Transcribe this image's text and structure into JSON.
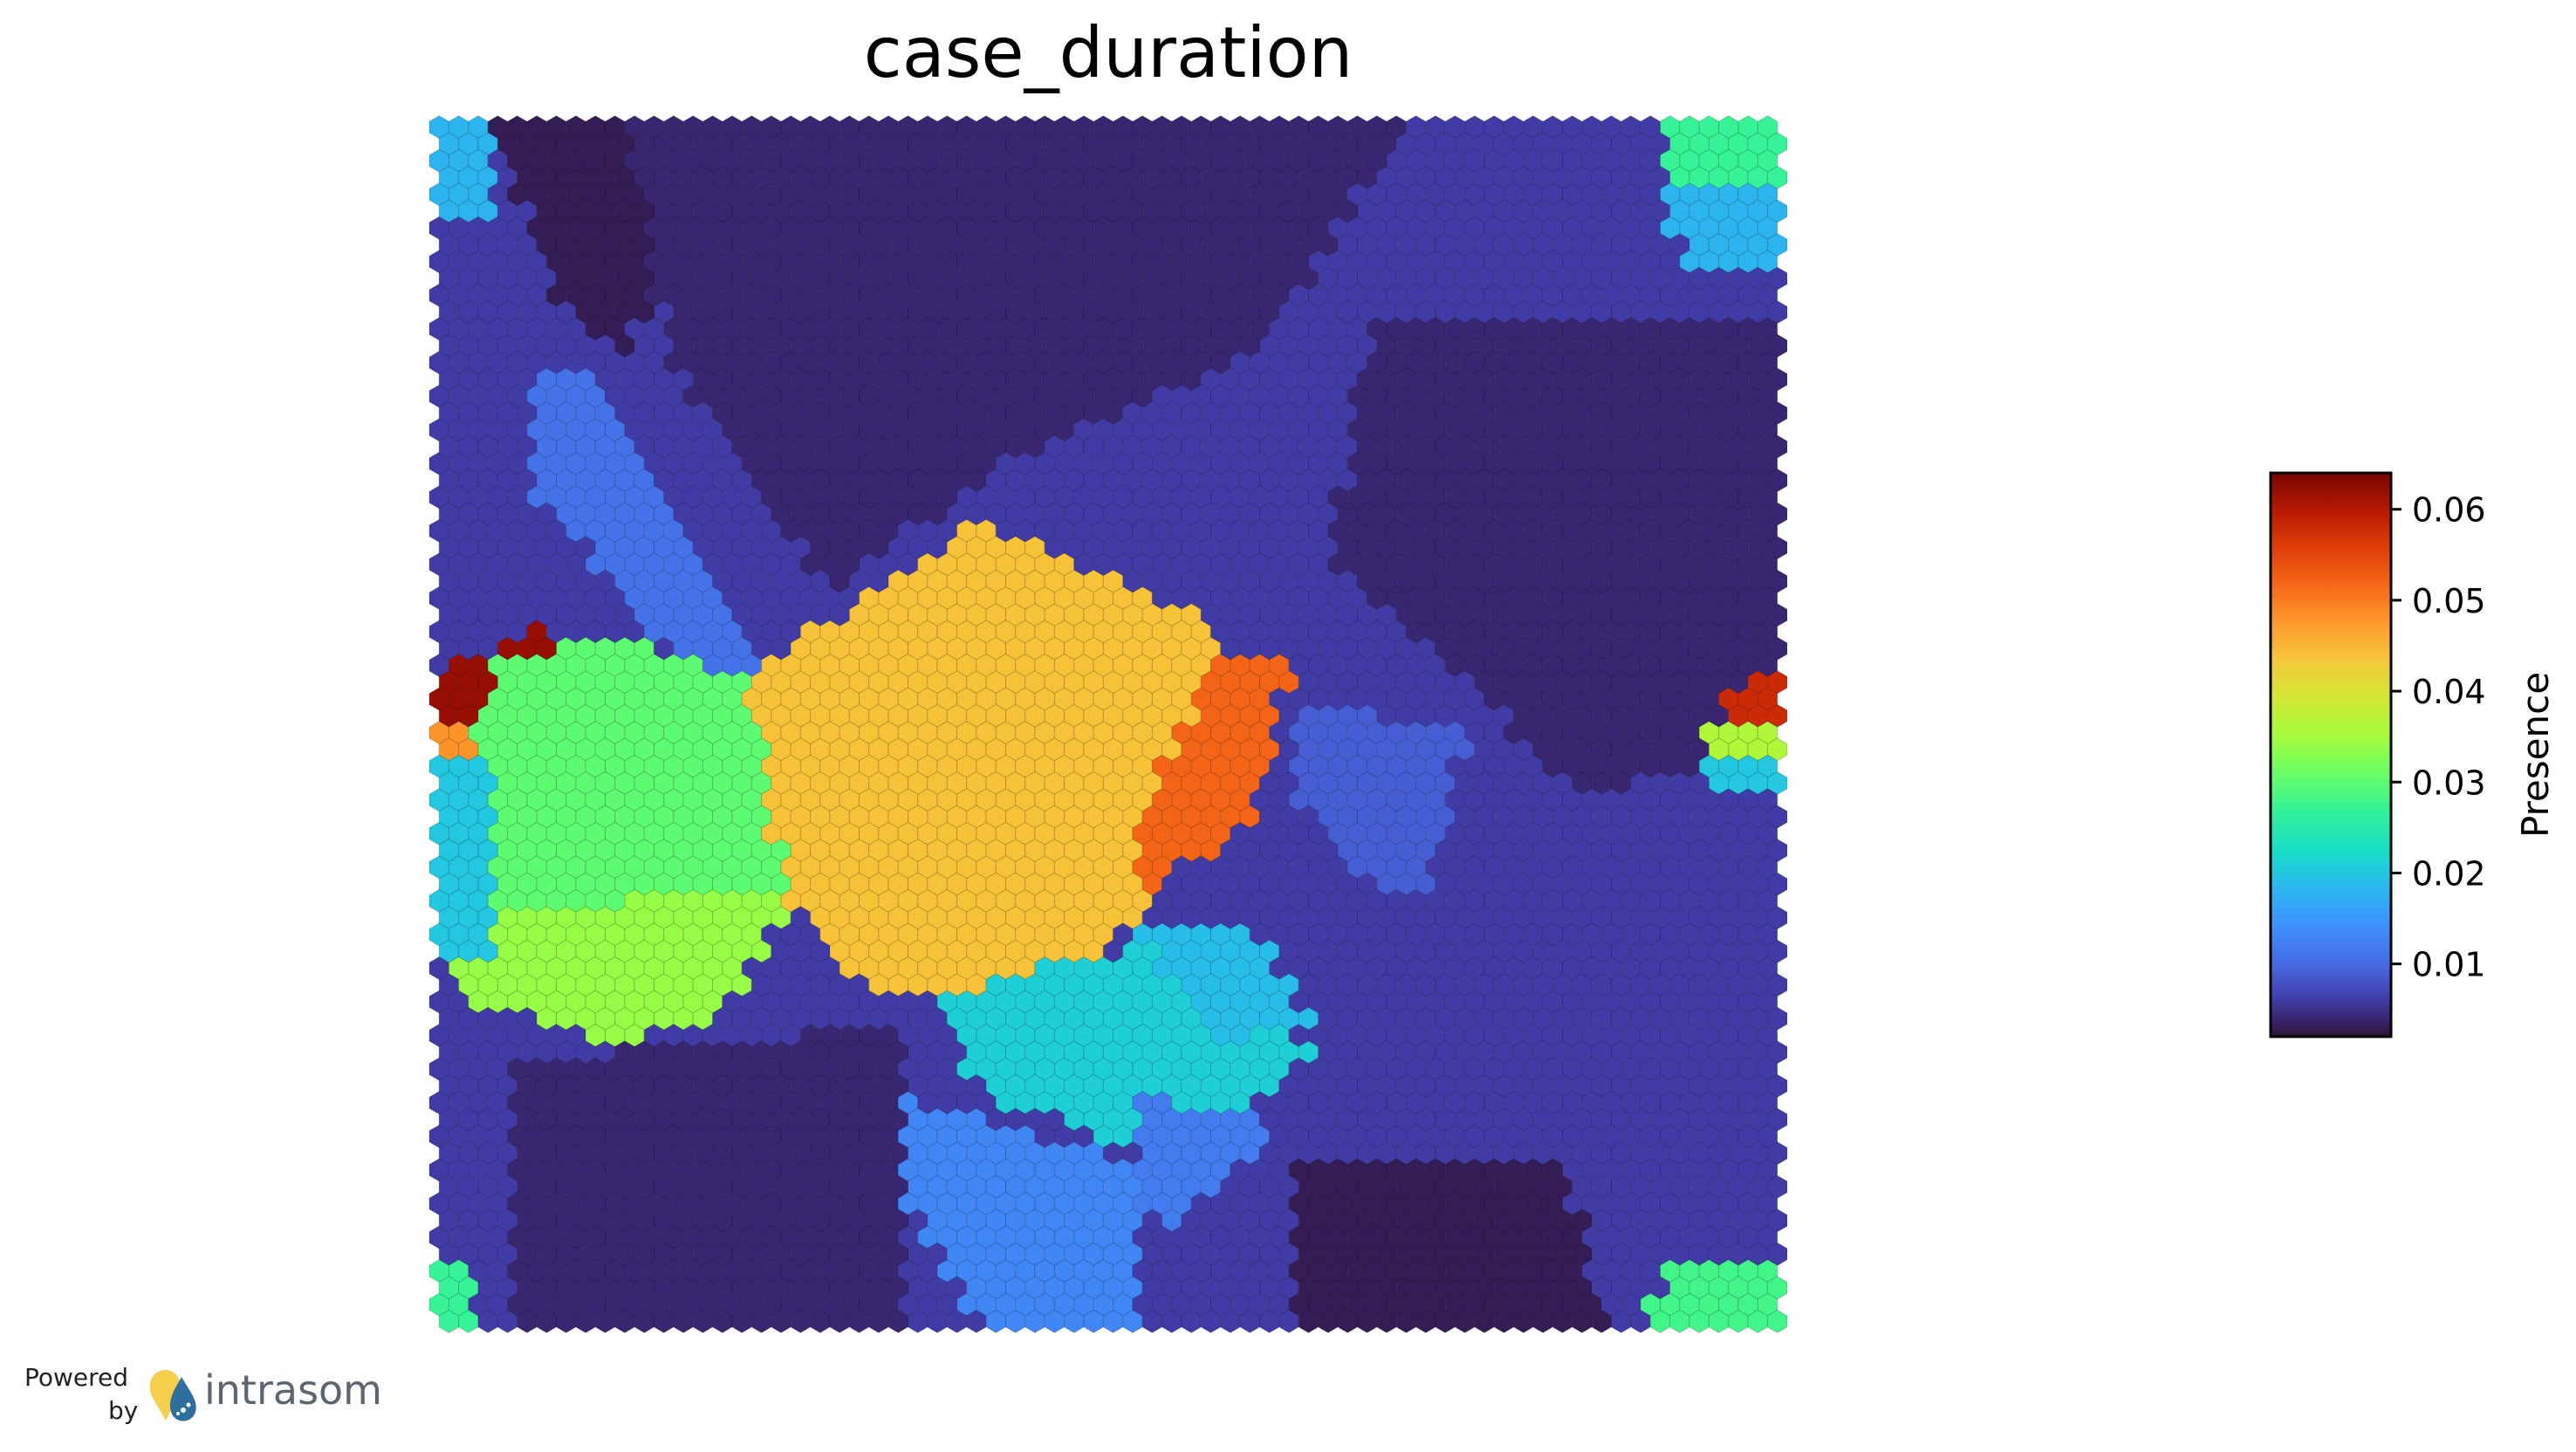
{
  "chart_data": {
    "type": "heatmap",
    "subtype": "hexagonal-som",
    "title": "case_duration",
    "colorbar": {
      "label": "Presence",
      "colormap": "turbo",
      "vmin": 0.002,
      "vmax": 0.064,
      "ticks": [
        0.01,
        0.02,
        0.03,
        0.04,
        0.05,
        0.06
      ],
      "tick_labels": [
        "0.01",
        "0.02",
        "0.03",
        "0.04",
        "0.05",
        "0.06"
      ]
    },
    "grid": {
      "columns": 69,
      "rows": 72,
      "default_value": 0.006
    },
    "regions": [
      {
        "name": "top-left-edge-cells",
        "polygon": [
          [
            0,
            0
          ],
          [
            3,
            0
          ],
          [
            3,
            6
          ],
          [
            0,
            6
          ]
        ],
        "value": 0.018
      },
      {
        "name": "top-center-light",
        "polygon": [
          [
            27,
            0
          ],
          [
            33,
            0
          ],
          [
            33,
            3
          ],
          [
            27,
            3
          ]
        ],
        "value": 0.012
      },
      {
        "name": "top-center-light-2",
        "polygon": [
          [
            32,
            0
          ],
          [
            36,
            0
          ],
          [
            37,
            5
          ],
          [
            34,
            5
          ]
        ],
        "value": 0.013
      },
      {
        "name": "top-right-green",
        "polygon": [
          [
            63,
            0
          ],
          [
            69,
            0
          ],
          [
            69,
            4
          ],
          [
            64,
            5
          ],
          [
            63,
            3
          ]
        ],
        "value": 0.027
      },
      {
        "name": "top-right-cyan",
        "polygon": [
          [
            63,
            4
          ],
          [
            69,
            4
          ],
          [
            69,
            9
          ],
          [
            64,
            9
          ]
        ],
        "value": 0.018
      },
      {
        "name": "top-dark-wedge",
        "polygon": [
          [
            3,
            0
          ],
          [
            14,
            0
          ],
          [
            10,
            14
          ],
          [
            6,
            10
          ]
        ],
        "value": 0.003
      },
      {
        "name": "upper-dark-band",
        "polygon": [
          [
            10,
            0
          ],
          [
            50,
            0
          ],
          [
            42,
            14
          ],
          [
            30,
            20
          ],
          [
            20,
            28
          ],
          [
            12,
            14
          ]
        ],
        "value": 0.004
      },
      {
        "name": "right-dark-field",
        "polygon": [
          [
            48,
            12
          ],
          [
            69,
            12
          ],
          [
            69,
            38
          ],
          [
            58,
            40
          ],
          [
            52,
            32
          ],
          [
            46,
            26
          ]
        ],
        "value": 0.004
      },
      {
        "name": "left-light-diagonal",
        "polygon": [
          [
            5,
            15
          ],
          [
            8,
            15
          ],
          [
            17,
            33
          ],
          [
            13,
            33
          ],
          [
            5,
            22
          ]
        ],
        "value": 0.011
      },
      {
        "name": "left-dark-red",
        "polygon": [
          [
            0,
            33
          ],
          [
            6,
            30
          ],
          [
            7,
            33
          ],
          [
            5,
            36
          ],
          [
            0,
            36
          ]
        ],
        "value": 0.062
      },
      {
        "name": "left-orange-strip",
        "polygon": [
          [
            0,
            36
          ],
          [
            5,
            36
          ],
          [
            5,
            38
          ],
          [
            0,
            38
          ]
        ],
        "value": 0.048
      },
      {
        "name": "left-green-region",
        "polygon": [
          [
            3,
            32
          ],
          [
            9,
            31
          ],
          [
            16,
            33
          ],
          [
            19,
            46
          ],
          [
            12,
            48
          ],
          [
            3,
            47
          ],
          [
            2,
            38
          ]
        ],
        "value": 0.03
      },
      {
        "name": "left-yellow-band",
        "polygon": [
          [
            1,
            47
          ],
          [
            19,
            46
          ],
          [
            14,
            54
          ],
          [
            9,
            55
          ],
          [
            1,
            52
          ]
        ],
        "value": 0.034
      },
      {
        "name": "left-cyan-edge",
        "polygon": [
          [
            0,
            38
          ],
          [
            3,
            38
          ],
          [
            3,
            50
          ],
          [
            0,
            50
          ]
        ],
        "value": 0.02
      },
      {
        "name": "center-orange",
        "polygon": [
          [
            16,
            33
          ],
          [
            28,
            24
          ],
          [
            40,
            30
          ],
          [
            40,
            40
          ],
          [
            36,
            48
          ],
          [
            30,
            52
          ],
          [
            22,
            52
          ],
          [
            18,
            46
          ]
        ],
        "value": 0.044
      },
      {
        "name": "center-red-strip",
        "polygon": [
          [
            40,
            32
          ],
          [
            44,
            32
          ],
          [
            42,
            42
          ],
          [
            36,
            46
          ],
          [
            36,
            42
          ]
        ],
        "value": 0.052
      },
      {
        "name": "center-right-light-blue",
        "polygon": [
          [
            44,
            35
          ],
          [
            53,
            36
          ],
          [
            51,
            46
          ],
          [
            48,
            46
          ],
          [
            44,
            40
          ]
        ],
        "value": 0.009
      },
      {
        "name": "lower-cyan",
        "polygon": [
          [
            26,
            52
          ],
          [
            40,
            48
          ],
          [
            45,
            56
          ],
          [
            38,
            62
          ],
          [
            28,
            58
          ]
        ],
        "value": 0.021
      },
      {
        "name": "lower-cyan-strip",
        "polygon": [
          [
            36,
            48
          ],
          [
            42,
            48
          ],
          [
            45,
            54
          ],
          [
            40,
            55
          ]
        ],
        "value": 0.019
      },
      {
        "name": "lower-mid-blue",
        "polygon": [
          [
            24,
            58
          ],
          [
            36,
            62
          ],
          [
            36,
            72
          ],
          [
            28,
            72
          ],
          [
            24,
            64
          ]
        ],
        "value": 0.013
      },
      {
        "name": "lower-light-blue-2",
        "polygon": [
          [
            36,
            58
          ],
          [
            44,
            60
          ],
          [
            38,
            66
          ],
          [
            36,
            64
          ]
        ],
        "value": 0.012
      },
      {
        "name": "lower-left-dark",
        "polygon": [
          [
            4,
            56
          ],
          [
            24,
            54
          ],
          [
            24,
            72
          ],
          [
            4,
            72
          ]
        ],
        "value": 0.004
      },
      {
        "name": "lower-right-dark",
        "polygon": [
          [
            44,
            62
          ],
          [
            58,
            62
          ],
          [
            60,
            72
          ],
          [
            44,
            72
          ]
        ],
        "value": 0.003
      },
      {
        "name": "right-red-spot",
        "polygon": [
          [
            66,
            34
          ],
          [
            69,
            33
          ],
          [
            69,
            36
          ],
          [
            66,
            37
          ]
        ],
        "value": 0.058
      },
      {
        "name": "right-yellow-spot",
        "polygon": [
          [
            65,
            36
          ],
          [
            69,
            36
          ],
          [
            69,
            38
          ],
          [
            65,
            38
          ]
        ],
        "value": 0.036
      },
      {
        "name": "right-cyan-spot",
        "polygon": [
          [
            65,
            38
          ],
          [
            69,
            38
          ],
          [
            69,
            40
          ],
          [
            65,
            40
          ]
        ],
        "value": 0.02
      },
      {
        "name": "bottom-left-green",
        "polygon": [
          [
            0,
            68
          ],
          [
            2,
            68
          ],
          [
            2,
            72
          ],
          [
            0,
            72
          ]
        ],
        "value": 0.027
      },
      {
        "name": "bottom-right-green",
        "polygon": [
          [
            63,
            68
          ],
          [
            69,
            68
          ],
          [
            69,
            72
          ],
          [
            62,
            72
          ]
        ],
        "value": 0.028
      }
    ]
  },
  "footer": {
    "powered": "Powered",
    "by": "by",
    "brand": "intrasom"
  }
}
